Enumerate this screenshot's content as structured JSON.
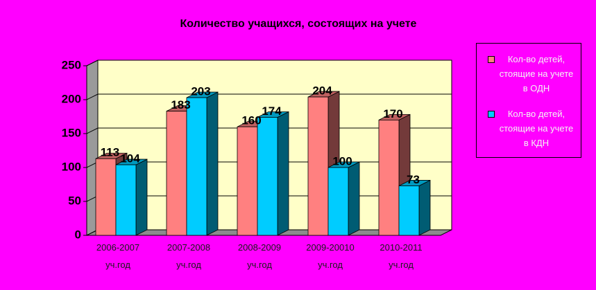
{
  "chart_data": {
    "type": "bar3d",
    "title": "Количество учащихся, состоящих на учете",
    "categories": [
      "2006-2007 уч.год",
      "2007-2008 уч.год",
      "2008-2009 уч.год",
      "2009-20010 уч.год",
      "2010-2011 уч.год"
    ],
    "series": [
      {
        "name": "Кол-во детей, стоящие на учете в ОДН",
        "color": "#FF8080",
        "values": [
          113,
          183,
          160,
          204,
          170
        ]
      },
      {
        "name": "Кол-во детей, стоящие на учете в КДН",
        "color": "#00CCFF",
        "values": [
          104,
          203,
          174,
          100,
          73
        ]
      }
    ],
    "ylim": [
      0,
      250
    ],
    "yticks": [
      0,
      50,
      100,
      150,
      200,
      250
    ],
    "grid": true,
    "legend": "right"
  }
}
